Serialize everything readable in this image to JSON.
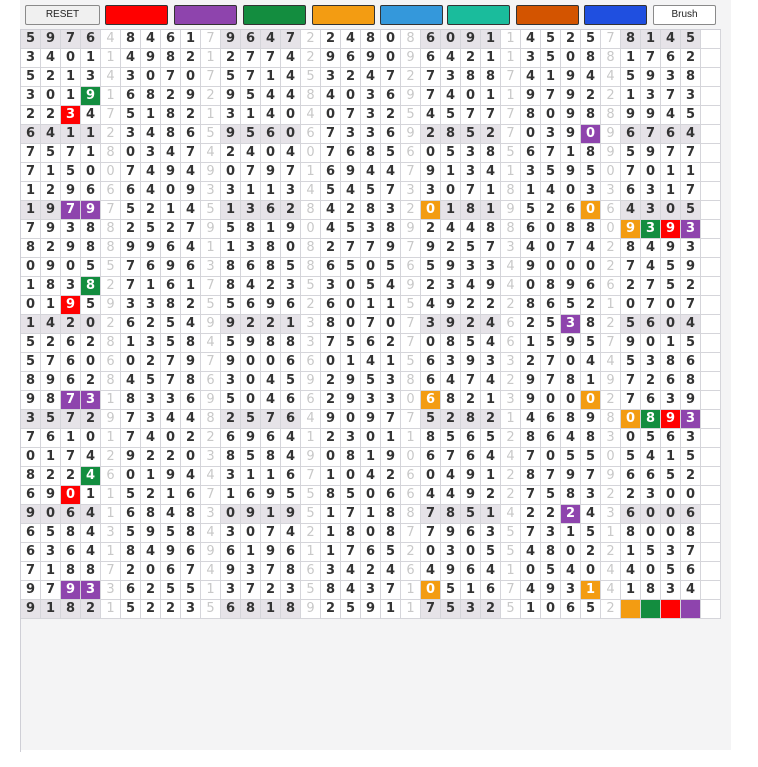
{
  "toolbar": {
    "reset_label": "RESET",
    "brush_label": "Brush",
    "swatches": [
      {
        "name": "red",
        "color": "#ff0000"
      },
      {
        "name": "purple",
        "color": "#8e44ad"
      },
      {
        "name": "green",
        "color": "#138d3f"
      },
      {
        "name": "orange",
        "color": "#f39c12"
      },
      {
        "name": "blue",
        "color": "#3498db"
      },
      {
        "name": "teal",
        "color": "#1abc9c"
      },
      {
        "name": "dark-orange",
        "color": "#d35400"
      },
      {
        "name": "royal-blue",
        "color": "#1f4fe0"
      }
    ]
  },
  "grid": {
    "rows": [
      "5976484617964722480860911452578145",
      "3401149821277429690964211350881762",
      "5213430707571453247273887419445938",
      "3019168292954484036974011979221373",
      "2234751821314040732545777809889945",
      "6411234865956067336928527039096764",
      "7571803474240407685605385671895977",
      "7150074949079716944791341359507011",
      "1296664093311345457330718140336317",
      "1979752145136284283201819526064305",
      "7938825279581904538924488608809393",
      "8298899641138082779792573407428493",
      "0905576963868586505659334900027459",
      "1838271617842353054923494089662752",
      "0195933825569626011549222865210707",
      "1420262549922138070739246253825604",
      "5262813584598837562708546159579015",
      "5760602797900660141563933270445386",
      "8962845786304592953864742978197268",
      "9873183369504662933068213900027639",
      "3572973448257649097752821468980893",
      "7610174022696412301185652864830563",
      "0174292203858490819067644705505415",
      "8224601944311671042604912879796652",
      "6901152167169558506644922758322300",
      "9064168483091951718878514222436006",
      "6584359584307421808779635731518008",
      "6364184969619611765203055480221537",
      "7188720674937863424649641054044056",
      "9793362551372358437105167493141834",
      "918215223568189259117532510652...."
    ],
    "colored": [
      {
        "r": 3,
        "c": 3,
        "color": "#138d3f"
      },
      {
        "r": 4,
        "c": 2,
        "color": "#ff0000"
      },
      {
        "r": 5,
        "c": 28,
        "color": "#8e44ad"
      },
      {
        "r": 9,
        "c": 2,
        "color": "#8e44ad"
      },
      {
        "r": 9,
        "c": 3,
        "color": "#8e44ad"
      },
      {
        "r": 9,
        "c": 20,
        "color": "#f39c12"
      },
      {
        "r": 9,
        "c": 28,
        "color": "#f39c12"
      },
      {
        "r": 10,
        "c": 30,
        "color": "#f39c12"
      },
      {
        "r": 10,
        "c": 31,
        "color": "#138d3f"
      },
      {
        "r": 10,
        "c": 32,
        "color": "#ff0000"
      },
      {
        "r": 10,
        "c": 33,
        "color": "#8e44ad"
      },
      {
        "r": 13,
        "c": 3,
        "color": "#138d3f"
      },
      {
        "r": 14,
        "c": 2,
        "color": "#ff0000"
      },
      {
        "r": 15,
        "c": 27,
        "color": "#8e44ad"
      },
      {
        "r": 19,
        "c": 2,
        "color": "#8e44ad"
      },
      {
        "r": 19,
        "c": 3,
        "color": "#8e44ad"
      },
      {
        "r": 19,
        "c": 20,
        "color": "#f39c12"
      },
      {
        "r": 19,
        "c": 28,
        "color": "#f39c12"
      },
      {
        "r": 20,
        "c": 30,
        "color": "#f39c12"
      },
      {
        "r": 20,
        "c": 31,
        "color": "#138d3f"
      },
      {
        "r": 20,
        "c": 32,
        "color": "#ff0000"
      },
      {
        "r": 20,
        "c": 33,
        "color": "#8e44ad"
      },
      {
        "r": 23,
        "c": 3,
        "color": "#138d3f"
      },
      {
        "r": 24,
        "c": 2,
        "color": "#ff0000"
      },
      {
        "r": 25,
        "c": 27,
        "color": "#8e44ad"
      },
      {
        "r": 29,
        "c": 2,
        "color": "#8e44ad"
      },
      {
        "r": 29,
        "c": 3,
        "color": "#8e44ad"
      },
      {
        "r": 29,
        "c": 20,
        "color": "#f39c12"
      },
      {
        "r": 29,
        "c": 28,
        "color": "#f39c12"
      },
      {
        "r": 30,
        "c": 30,
        "color": "#f39c12"
      },
      {
        "r": 30,
        "c": 31,
        "color": "#138d3f"
      },
      {
        "r": 30,
        "c": 32,
        "color": "#ff0000"
      },
      {
        "r": 30,
        "c": 33,
        "color": "#8e44ad"
      }
    ]
  }
}
